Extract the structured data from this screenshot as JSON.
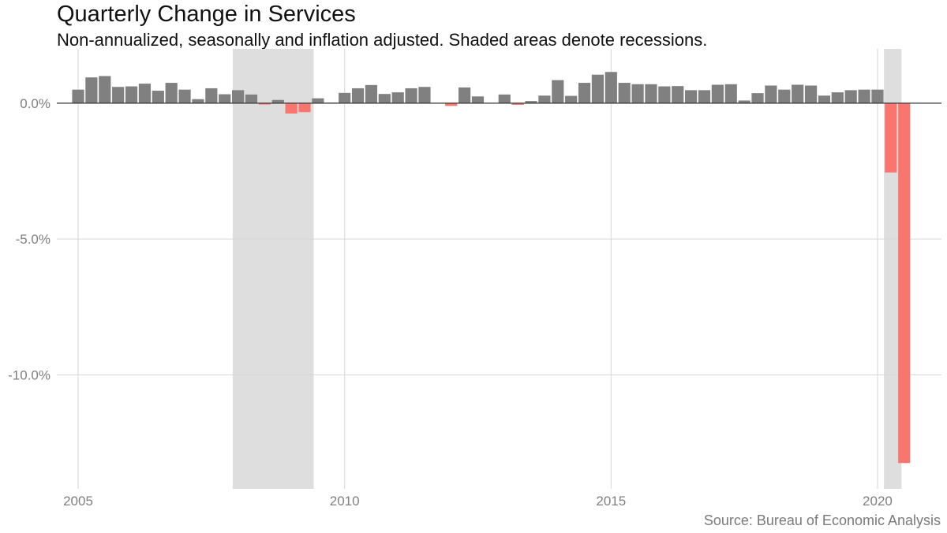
{
  "chart_data": {
    "type": "bar",
    "title": "Quarterly Change in Services",
    "subtitle": "Non-annualized, seasonally and inflation adjusted. Shaded areas denote recessions.",
    "caption": "Source: Bureau of Economic Analysis",
    "xlabel": "",
    "ylabel": "",
    "x_start": 2005.0,
    "x_step": 0.25,
    "xlim": [
      2004.6,
      2021.2
    ],
    "ylim": [
      -14.2,
      2.0
    ],
    "x_ticks": [
      2005,
      2010,
      2015,
      2020
    ],
    "x_tick_labels": [
      "2005",
      "2010",
      "2015",
      "2020"
    ],
    "y_ticks": [
      0,
      -5,
      -10
    ],
    "y_tick_labels": [
      "0.0%",
      "-5.0%",
      "-10.0%"
    ],
    "grid": true,
    "positive_color": "#808080",
    "negative_color": "#f8766d",
    "recession_color": "#dedede",
    "zero_line_color": "#333333",
    "grid_color": "#d6d6d6",
    "recessions": [
      {
        "start": 2007.9,
        "end": 2009.42
      },
      {
        "start": 2020.12,
        "end": 2020.45
      }
    ],
    "values": [
      0.5,
      0.95,
      1.0,
      0.6,
      0.62,
      0.72,
      0.46,
      0.75,
      0.5,
      0.15,
      0.55,
      0.33,
      0.48,
      0.32,
      -0.05,
      0.12,
      -0.38,
      -0.33,
      0.18,
      0.02,
      0.38,
      0.55,
      0.67,
      0.34,
      0.4,
      0.55,
      0.6,
      0.0,
      -0.1,
      0.58,
      0.25,
      0.0,
      0.32,
      -0.06,
      0.08,
      0.28,
      0.85,
      0.27,
      0.75,
      1.05,
      1.15,
      0.75,
      0.7,
      0.7,
      0.62,
      0.63,
      0.48,
      0.48,
      0.68,
      0.7,
      0.1,
      0.37,
      0.65,
      0.5,
      0.68,
      0.65,
      0.28,
      0.4,
      0.48,
      0.5,
      0.5,
      -2.55,
      -13.25
    ]
  }
}
